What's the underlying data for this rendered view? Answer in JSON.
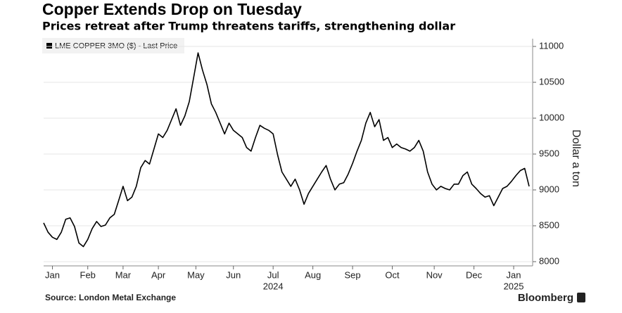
{
  "chart_data": {
    "type": "line",
    "title": "Copper Extends Drop on Tuesday",
    "subtitle": "Prices retreat after Trump threatens tariffs, strengthening dollar",
    "y_label": "Dollar a ton",
    "source": "Source: London Metal Exchange",
    "brand": "Bloomberg",
    "years": [
      "2024",
      "2025"
    ],
    "series": [
      {
        "name": "LME COPPER 3MO ($) - Last Price",
        "color": "#000000",
        "values": [
          8540,
          8410,
          8340,
          8310,
          8410,
          8590,
          8610,
          8490,
          8260,
          8210,
          8310,
          8460,
          8560,
          8490,
          8510,
          8610,
          8660,
          8850,
          9050,
          8850,
          8900,
          9050,
          9310,
          9410,
          9360,
          9570,
          9780,
          9730,
          9830,
          9980,
          10130,
          9900,
          10030,
          10230,
          10570,
          10910,
          10670,
          10470,
          10200,
          10080,
          9930,
          9780,
          9930,
          9830,
          9780,
          9730,
          9590,
          9540,
          9730,
          9900,
          9860,
          9830,
          9780,
          9490,
          9250,
          9150,
          9050,
          9150,
          9000,
          8800,
          8950,
          9050,
          9150,
          9250,
          9340,
          9150,
          9000,
          9080,
          9100,
          9220,
          9370,
          9540,
          9690,
          9930,
          10080,
          9880,
          9980,
          9690,
          9730,
          9590,
          9640,
          9590,
          9570,
          9540,
          9590,
          9690,
          9540,
          9250,
          9080,
          9000,
          9050,
          9020,
          9000,
          9080,
          9080,
          9200,
          9250,
          9080,
          9020,
          8950,
          8900,
          8920,
          8780,
          8900,
          9020,
          9050,
          9120,
          9200,
          9270,
          9300,
          9050
        ]
      }
    ],
    "xlim": [
      0,
      110
    ],
    "xticks": [
      {
        "value": 2,
        "label": "Jan"
      },
      {
        "value": 10,
        "label": "Feb"
      },
      {
        "value": 18,
        "label": "Mar"
      },
      {
        "value": 26,
        "label": "Apr"
      },
      {
        "value": 34.5,
        "label": "May"
      },
      {
        "value": 43,
        "label": "Jun"
      },
      {
        "value": 52,
        "label": "Jul"
      },
      {
        "value": 61,
        "label": "Aug"
      },
      {
        "value": 70,
        "label": "Sep"
      },
      {
        "value": 79,
        "label": "Oct"
      },
      {
        "value": 88.5,
        "label": "Nov"
      },
      {
        "value": 97.5,
        "label": "Dec"
      },
      {
        "value": 106.5,
        "label": "Jan"
      }
    ],
    "ylim": [
      8000,
      11000
    ],
    "yticks": [
      8000,
      8500,
      9000,
      9500,
      10000,
      10500,
      11000
    ],
    "grid": true
  }
}
